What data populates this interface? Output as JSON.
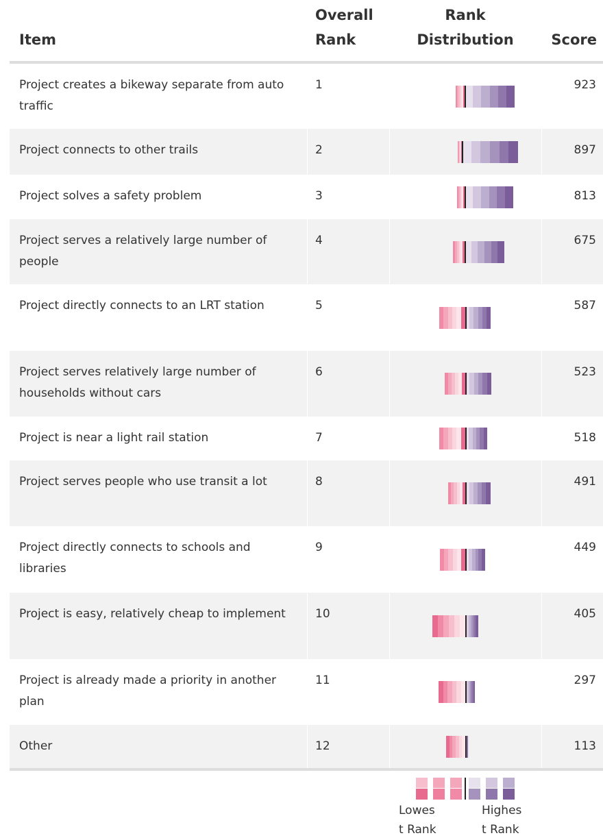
{
  "header": {
    "item": "Item",
    "overall_rank": [
      "Overall",
      "Rank"
    ],
    "rank_distribution": [
      "Rank",
      "Distribution"
    ],
    "score": "Score"
  },
  "table": {
    "rows": [
      [
        "Project creates a bikeway separate from auto traffic",
        "1",
        "923"
      ],
      [
        "Project connects to other trails",
        "2",
        "897"
      ],
      [
        "Project solves a safety problem",
        "3",
        "813"
      ],
      [
        "Project serves a relatively large number of people",
        "4",
        "675"
      ],
      [
        "Project directly connects to an LRT station",
        "5",
        "587"
      ],
      [
        "Project serves relatively large number of households without cars",
        "6",
        "523"
      ],
      [
        "Project is near a light rail station",
        "7",
        "518"
      ],
      [
        "Project serves people who use transit a lot",
        "8",
        "491"
      ],
      [
        "Project directly connects to schools and libraries",
        "9",
        "449"
      ],
      [
        "Project is easy, relatively cheap to implement",
        "10",
        "405"
      ],
      [
        "Project is already made a priority in another plan",
        "11",
        "297"
      ],
      [
        "Other",
        "12",
        "113"
      ]
    ]
  },
  "legend": {
    "low": [
      "Lowes",
      "t Rank"
    ],
    "high": [
      "Highes",
      "t Rank"
    ]
  }
}
